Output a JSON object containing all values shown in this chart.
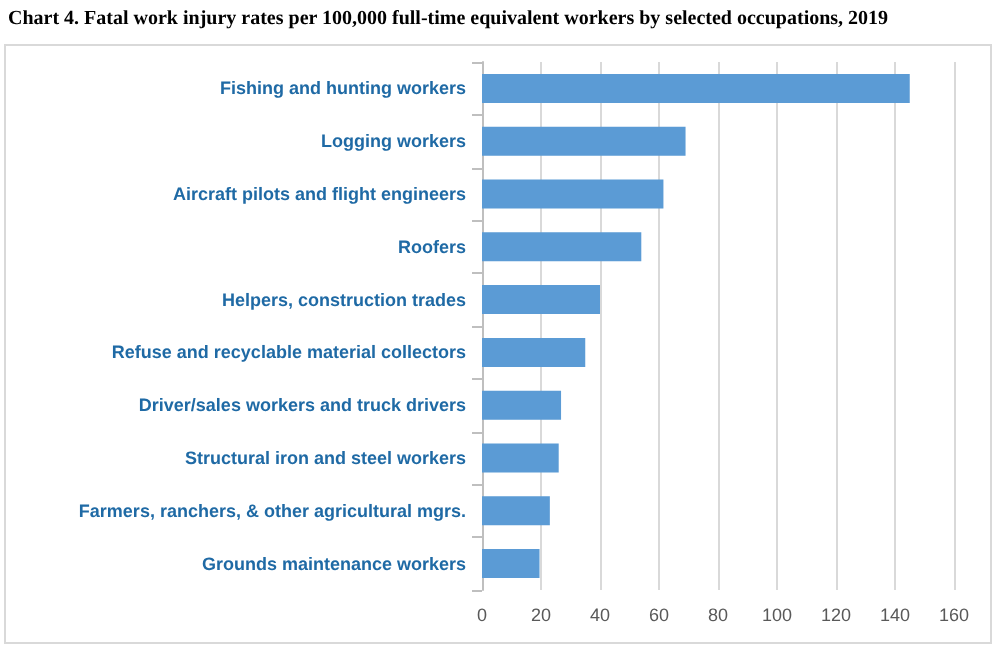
{
  "chart_data": {
    "type": "bar",
    "orientation": "horizontal",
    "title": "Chart 4. Fatal work injury rates per 100,000 full-time equivalent workers by selected occupations, 2019",
    "categories": [
      "Fishing and hunting workers",
      "Logging workers",
      "Aircraft pilots and flight engineers",
      "Roofers",
      "Helpers, construction trades",
      "Refuse and recyclable material collectors",
      "Driver/sales workers and truck drivers",
      "Structural iron and steel workers",
      "Farmers, ranchers, & other agricultural mgrs.",
      "Grounds maintenance workers"
    ],
    "values": [
      145,
      69,
      61.5,
      54,
      40,
      35,
      26.8,
      26,
      23,
      19.5
    ],
    "color": "#5b9bd5",
    "xlim": [
      0,
      160
    ],
    "xticks": [
      0,
      20,
      40,
      60,
      80,
      100,
      120,
      140,
      160
    ],
    "grid": "x"
  }
}
